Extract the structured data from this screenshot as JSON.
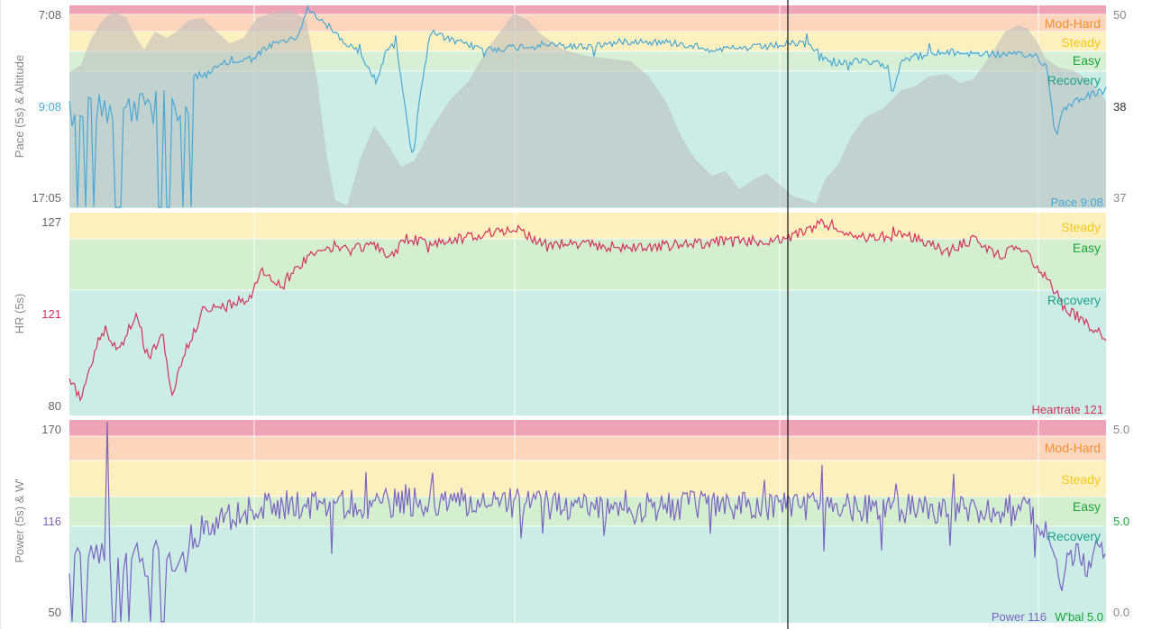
{
  "chart_data": [
    {
      "type": "line",
      "ylabel": "Pace (5s) & Altitude",
      "left_ticks": [
        "7:08",
        "9:08",
        "17:05"
      ],
      "right_ticks": [
        "50",
        "38",
        "37"
      ],
      "zones": [
        {
          "name": "",
          "color": "#e05a7a",
          "opacity": 0.55
        },
        {
          "name": "Mod-Hard",
          "color": "#f6a56a",
          "text_color": "#f2922f",
          "opacity": 0.45
        },
        {
          "name": "Steady",
          "color": "#fbe38a",
          "text_color": "#f4c81a",
          "opacity": 0.55
        },
        {
          "name": "Easy",
          "color": "#b7e2b1",
          "text_color": "#1ba53a",
          "opacity": 0.55
        },
        {
          "name": "Recovery",
          "color": "#b5e6dc",
          "text_color": "#1ba28a",
          "opacity": 0.7
        }
      ],
      "series": [
        {
          "name": "Pace",
          "color": "#4aa8d6",
          "readout": "Pace 9:08"
        },
        {
          "name": "Altitude",
          "color": "#b8b8b8"
        }
      ],
      "current": {
        "left": "9:08",
        "right": "38"
      },
      "grid": true
    },
    {
      "type": "line",
      "ylabel": "HR (5s)",
      "left_ticks": [
        "127",
        "121",
        "80"
      ],
      "ylim": [
        80,
        127
      ],
      "zones": [
        {
          "name": "Steady",
          "color": "#fbe38a",
          "text_color": "#f4c81a",
          "opacity": 0.55
        },
        {
          "name": "Easy",
          "color": "#b7e2b1",
          "text_color": "#1ba53a",
          "opacity": 0.6
        },
        {
          "name": "Recovery",
          "color": "#b5e6dc",
          "text_color": "#1ba28a",
          "opacity": 0.7
        }
      ],
      "series": [
        {
          "name": "Heartrate",
          "color": "#d2335c",
          "readout": "Heartrate 121"
        }
      ],
      "current": {
        "left": "121"
      },
      "grid": true
    },
    {
      "type": "line",
      "ylabel": "Power (5s) & W'",
      "left_ticks": [
        "170",
        "116",
        "50"
      ],
      "right_ticks": [
        "5.0",
        "5.0",
        "0.0"
      ],
      "ylim": [
        50,
        170
      ],
      "zones": [
        {
          "name": "",
          "color": "#e05a7a",
          "opacity": 0.55
        },
        {
          "name": "Mod-Hard",
          "color": "#f6a56a",
          "text_color": "#f2922f",
          "opacity": 0.45
        },
        {
          "name": "Steady",
          "color": "#fbe38a",
          "text_color": "#f4c81a",
          "opacity": 0.55
        },
        {
          "name": "Easy",
          "color": "#b7e2b1",
          "text_color": "#1ba53a",
          "opacity": 0.6
        },
        {
          "name": "Recovery",
          "color": "#b5e6dc",
          "text_color": "#1ba28a",
          "opacity": 0.7
        }
      ],
      "series": [
        {
          "name": "Power",
          "color": "#7a63c2",
          "readout": "Power 116"
        },
        {
          "name": "W'bal",
          "color": "#1ba53a",
          "readout": "W'bal 5.0"
        }
      ],
      "current": {
        "left": "116",
        "right": "5.0"
      },
      "grid": true
    }
  ]
}
